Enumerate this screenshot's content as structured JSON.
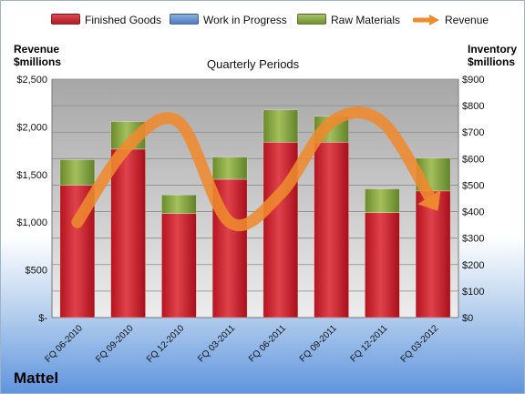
{
  "legend": {
    "finished": "Finished Goods",
    "wip": "Work in Progress",
    "raw": "Raw Materials",
    "revenue": "Revenue"
  },
  "headers": {
    "left_line1": "Revenue",
    "left_line2": "$millions",
    "right_line1": "Inventory",
    "right_line2": "$millions"
  },
  "subtitle": "Quarterly Periods",
  "company": "Mattel",
  "colors": {
    "finished": "#cc1f2a",
    "wip": "#3b73c4",
    "raw": "#7fa13a",
    "revenue": "#ef8a2f"
  },
  "chart_data": {
    "type": "bar",
    "stacked": true,
    "categories": [
      "FQ 06-2010",
      "FQ 09-2010",
      "FQ 12-2010",
      "FQ 03-2011",
      "FQ 06-2011",
      "FQ 09-2011",
      "FQ 12-2011",
      "FQ 03-2012"
    ],
    "series": [
      {
        "name": "Finished Goods",
        "axis": "right",
        "values": [
          500,
          636,
          393,
          522,
          662,
          662,
          396,
          478
        ]
      },
      {
        "name": "Work in Progress",
        "axis": "right",
        "values": [
          0,
          0,
          0,
          0,
          0,
          0,
          0,
          0
        ]
      },
      {
        "name": "Raw Materials",
        "axis": "right",
        "values": [
          96,
          104,
          70,
          84,
          122,
          98,
          90,
          124
        ]
      },
      {
        "name": "Revenue",
        "axis": "left",
        "type": "line",
        "values": [
          1000,
          1800,
          2050,
          1000,
          1300,
          2050,
          2050,
          1200
        ]
      }
    ],
    "left_axis": {
      "min": 0,
      "max": 2500,
      "step": 500,
      "ticks": [
        "$-",
        "$500",
        "$1,000",
        "$1,500",
        "$2,000",
        "$2,500"
      ]
    },
    "right_axis": {
      "min": 0,
      "max": 900,
      "step": 100,
      "ticks": [
        "$0",
        "$100",
        "$200",
        "$300",
        "$400",
        "$500",
        "$600",
        "$700",
        "$800",
        "$900"
      ]
    },
    "grid": true,
    "legend_position": "top"
  }
}
